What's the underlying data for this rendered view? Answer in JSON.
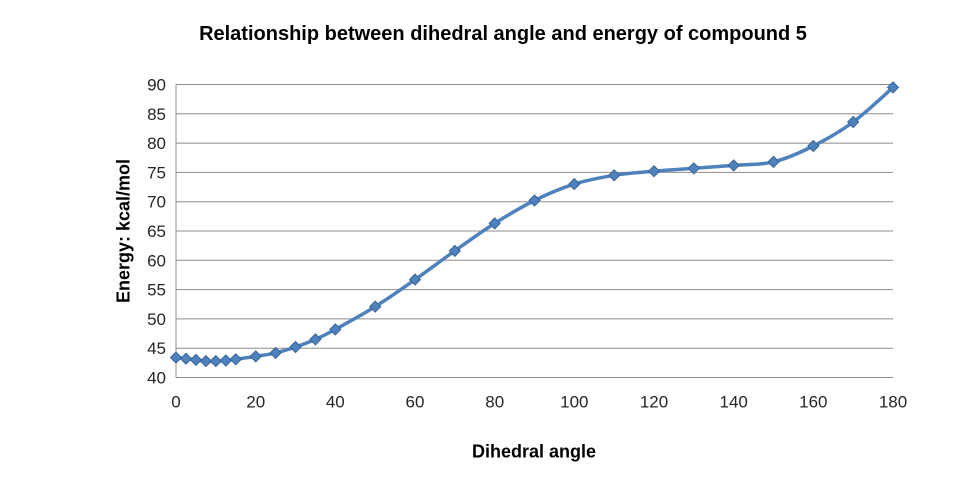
{
  "page": {
    "background": "#ffffff"
  },
  "chart_data": {
    "type": "line",
    "title": "Relationship between dihedral angle and energy of compound 5",
    "xlabel": "Dihedral angle",
    "ylabel": "Energy: kcal/mol",
    "xlim": [
      0,
      180
    ],
    "ylim": [
      40,
      90
    ],
    "x_ticks": [
      0,
      20,
      40,
      60,
      80,
      100,
      120,
      140,
      160,
      180
    ],
    "y_ticks": [
      40,
      45,
      50,
      55,
      60,
      65,
      70,
      75,
      80,
      85,
      90
    ],
    "grid": "horizontal-only",
    "legend": "none",
    "colors": {
      "series": "#4F81BD",
      "marker_edge": "#38659B",
      "gridline": "#8C8C8C",
      "axis": "#8C8C8C",
      "tick_text": "#262626",
      "title_text": "#000000"
    },
    "series": [
      {
        "name": "Energy of compound 5",
        "marker": "diamond",
        "smooth": true,
        "points": [
          [
            0,
            43.4
          ],
          [
            2.5,
            43.2
          ],
          [
            5,
            43.0
          ],
          [
            7.5,
            42.8
          ],
          [
            10,
            42.8
          ],
          [
            12.5,
            42.9
          ],
          [
            15,
            43.1
          ],
          [
            20,
            43.6
          ],
          [
            25,
            44.2
          ],
          [
            30,
            45.2
          ],
          [
            35,
            46.5
          ],
          [
            40,
            48.2
          ],
          [
            50,
            52.1
          ],
          [
            60,
            56.7
          ],
          [
            70,
            61.6
          ],
          [
            80,
            66.3
          ],
          [
            90,
            70.2
          ],
          [
            100,
            73.0
          ],
          [
            110,
            74.5
          ],
          [
            120,
            75.2
          ],
          [
            130,
            75.7
          ],
          [
            140,
            76.2
          ],
          [
            150,
            76.8
          ],
          [
            160,
            79.5
          ],
          [
            170,
            83.6
          ],
          [
            180,
            89.5
          ]
        ]
      }
    ]
  }
}
